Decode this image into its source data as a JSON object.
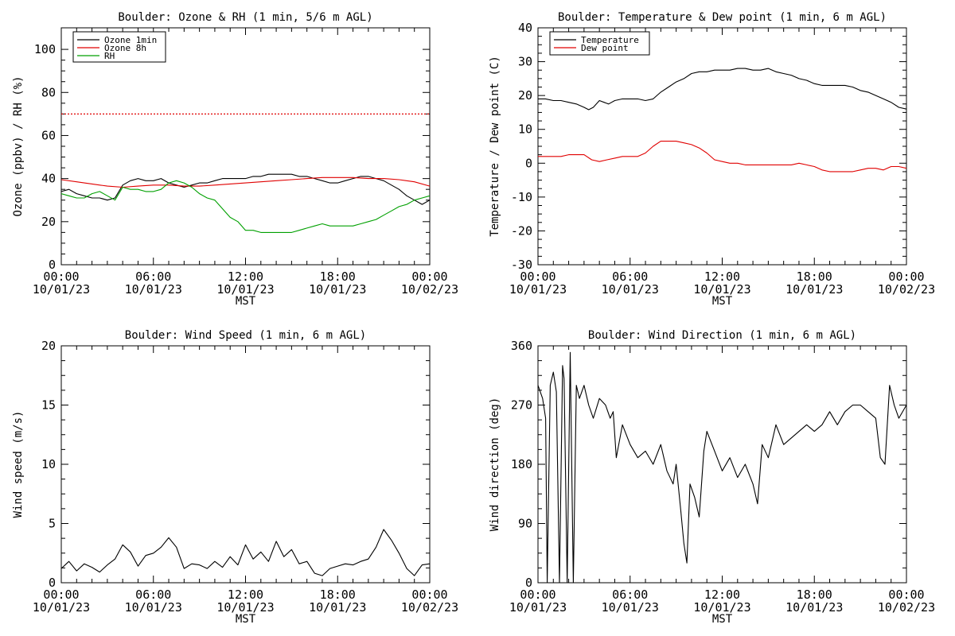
{
  "chart_data": [
    {
      "type": "line",
      "title": "Boulder: Ozone & RH (1 min, 5/6 m AGL)",
      "xlabel": "MST",
      "ylabel": "Ozone (ppbv) / RH (%)",
      "x_ticks": [
        {
          "hour": 0,
          "time": "00:00",
          "date": "10/01/23"
        },
        {
          "hour": 6,
          "time": "06:00",
          "date": "10/01/23"
        },
        {
          "hour": 12,
          "time": "12:00",
          "date": "10/01/23"
        },
        {
          "hour": 18,
          "time": "18:00",
          "date": "10/01/23"
        },
        {
          "hour": 24,
          "time": "00:00",
          "date": "10/02/23"
        }
      ],
      "xlim": [
        0,
        24
      ],
      "ylim": [
        0,
        110
      ],
      "yticks": [
        0,
        20,
        40,
        60,
        80,
        100
      ],
      "legend": "top-left",
      "reference_line": {
        "y": 70,
        "color": "#e00000",
        "style": "dotted"
      },
      "series": [
        {
          "name": "Ozone 1min",
          "color": "#000000",
          "x": [
            0,
            0.5,
            1,
            1.5,
            2,
            2.5,
            3,
            3.5,
            4,
            4.5,
            5,
            5.5,
            6,
            6.5,
            7,
            7.5,
            8,
            8.5,
            9,
            9.5,
            10,
            10.5,
            11,
            11.5,
            12,
            12.5,
            13,
            13.5,
            14,
            14.5,
            15,
            15.5,
            16,
            16.5,
            17,
            17.5,
            18,
            18.5,
            19,
            19.5,
            20,
            20.5,
            21,
            21.5,
            22,
            22.5,
            23,
            23.5,
            24
          ],
          "y": [
            34,
            35,
            33,
            32,
            31,
            31,
            30,
            31,
            37,
            39,
            40,
            39,
            39,
            40,
            38,
            37,
            36,
            37,
            38,
            38,
            39,
            40,
            40,
            40,
            40,
            41,
            41,
            42,
            42,
            42,
            42,
            41,
            41,
            40,
            39,
            38,
            38,
            39,
            40,
            41,
            41,
            40,
            39,
            37,
            35,
            32,
            30,
            28,
            30
          ]
        },
        {
          "name": "Ozone 8h",
          "color": "#e00000",
          "x": [
            0,
            1,
            2,
            3,
            4,
            5,
            6,
            7,
            8,
            9,
            10,
            11,
            12,
            13,
            14,
            15,
            16,
            17,
            18,
            19,
            20,
            21,
            22,
            23,
            24
          ],
          "y": [
            39.5,
            38.5,
            37.5,
            36.5,
            36,
            36.5,
            37,
            37,
            36.5,
            36.5,
            37,
            37.5,
            38,
            38.5,
            39,
            39.5,
            40,
            40.5,
            40.5,
            40.5,
            40,
            40,
            39.5,
            38.5,
            36.5
          ]
        },
        {
          "name": "RH",
          "color": "#00a000",
          "x": [
            0,
            0.5,
            1,
            1.5,
            2,
            2.5,
            3,
            3.5,
            4,
            4.5,
            5,
            5.5,
            6,
            6.5,
            7,
            7.5,
            8,
            8.5,
            9,
            9.5,
            10,
            10.5,
            11,
            11.5,
            12,
            12.5,
            13,
            13.5,
            14,
            14.5,
            15,
            15.5,
            16,
            16.5,
            17,
            17.5,
            18,
            18.5,
            19,
            19.5,
            20,
            20.5,
            21,
            21.5,
            22,
            22.5,
            23,
            23.5,
            24
          ],
          "y": [
            33,
            32,
            31,
            31,
            33,
            34,
            32,
            30,
            36,
            35,
            35,
            34,
            34,
            35,
            38,
            39,
            38,
            36,
            33,
            31,
            30,
            26,
            22,
            20,
            16,
            16,
            15,
            15,
            15,
            15,
            15,
            16,
            17,
            18,
            19,
            18,
            18,
            18,
            18,
            19,
            20,
            21,
            23,
            25,
            27,
            28,
            30,
            31,
            32
          ]
        }
      ]
    },
    {
      "type": "line",
      "title": "Boulder: Temperature & Dew point (1 min, 6 m AGL)",
      "xlabel": "MST",
      "ylabel": "Temperature / Dew point (C)",
      "x_ticks": [
        {
          "hour": 0,
          "time": "00:00",
          "date": "10/01/23"
        },
        {
          "hour": 6,
          "time": "06:00",
          "date": "10/01/23"
        },
        {
          "hour": 12,
          "time": "12:00",
          "date": "10/01/23"
        },
        {
          "hour": 18,
          "time": "18:00",
          "date": "10/01/23"
        },
        {
          "hour": 24,
          "time": "00:00",
          "date": "10/02/23"
        }
      ],
      "xlim": [
        0,
        24
      ],
      "ylim": [
        -30,
        40
      ],
      "yticks": [
        -30,
        -20,
        -10,
        0,
        10,
        20,
        30,
        40
      ],
      "legend": "top-left",
      "series": [
        {
          "name": "Temperature",
          "color": "#000000",
          "x": [
            0,
            0.5,
            1,
            1.5,
            2,
            2.5,
            3,
            3.3,
            3.6,
            4,
            4.3,
            4.6,
            5,
            5.5,
            6,
            6.5,
            7,
            7.5,
            8,
            8.5,
            9,
            9.5,
            10,
            10.5,
            11,
            11.5,
            12,
            12.5,
            13,
            13.5,
            14,
            14.5,
            15,
            15.5,
            16,
            16.5,
            17,
            17.5,
            18,
            18.5,
            19,
            19.5,
            20,
            20.5,
            21,
            21.5,
            22,
            22.5,
            23,
            23.5,
            24
          ],
          "y": [
            19,
            19,
            18.5,
            18.5,
            18,
            17.5,
            16.5,
            15.8,
            16.5,
            18.5,
            18,
            17.5,
            18.5,
            19,
            19,
            19,
            18.5,
            19,
            21,
            22.5,
            24,
            25,
            26.5,
            27,
            27,
            27.5,
            27.5,
            27.5,
            28,
            28,
            27.5,
            27.5,
            28,
            27,
            26.5,
            26,
            25,
            24.5,
            23.5,
            23,
            23,
            23,
            23,
            22.5,
            21.5,
            21,
            20,
            19,
            18,
            16.5,
            16
          ]
        },
        {
          "name": "Dew point",
          "color": "#e00000",
          "x": [
            0,
            0.5,
            1,
            1.5,
            2,
            2.5,
            3,
            3.5,
            4,
            4.5,
            5,
            5.5,
            6,
            6.5,
            7,
            7.5,
            8,
            8.5,
            9,
            9.5,
            10,
            10.5,
            11,
            11.5,
            12,
            12.5,
            13,
            13.5,
            14,
            14.5,
            15,
            15.5,
            16,
            16.5,
            17,
            17.5,
            18,
            18.5,
            19,
            19.5,
            20,
            20.5,
            21,
            21.5,
            22,
            22.5,
            23,
            23.5,
            24
          ],
          "y": [
            2,
            2,
            2,
            2,
            2.5,
            2.5,
            2.5,
            1,
            0.5,
            1,
            1.5,
            2,
            2,
            2,
            3,
            5,
            6.5,
            6.5,
            6.5,
            6,
            5.5,
            4.5,
            3,
            1,
            0.5,
            0,
            0,
            -0.5,
            -0.5,
            -0.5,
            -0.5,
            -0.5,
            -0.5,
            -0.5,
            0,
            -0.5,
            -1,
            -2,
            -2.5,
            -2.5,
            -2.5,
            -2.5,
            -2,
            -1.5,
            -1.5,
            -2,
            -1,
            -1,
            -1.5
          ]
        }
      ]
    },
    {
      "type": "line",
      "title": "Boulder: Wind Speed (1 min, 6 m AGL)",
      "xlabel": "MST",
      "ylabel": "Wind speed (m/s)",
      "x_ticks": [
        {
          "hour": 0,
          "time": "00:00",
          "date": "10/01/23"
        },
        {
          "hour": 6,
          "time": "06:00",
          "date": "10/01/23"
        },
        {
          "hour": 12,
          "time": "12:00",
          "date": "10/01/23"
        },
        {
          "hour": 18,
          "time": "18:00",
          "date": "10/01/23"
        },
        {
          "hour": 24,
          "time": "00:00",
          "date": "10/02/23"
        }
      ],
      "xlim": [
        0,
        24
      ],
      "ylim": [
        0,
        20
      ],
      "yticks": [
        0,
        5,
        10,
        15,
        20
      ],
      "series": [
        {
          "name": "",
          "color": "#000000",
          "x": [
            0,
            0.5,
            1,
            1.5,
            2,
            2.5,
            3,
            3.5,
            4,
            4.5,
            5,
            5.5,
            6,
            6.5,
            7,
            7.5,
            8,
            8.5,
            9,
            9.5,
            10,
            10.5,
            11,
            11.5,
            12,
            12.5,
            13,
            13.5,
            14,
            14.5,
            15,
            15.5,
            16,
            16.5,
            17,
            17.5,
            18,
            18.5,
            19,
            19.5,
            20,
            20.5,
            21,
            21.5,
            22,
            22.5,
            23,
            23.5,
            24
          ],
          "y": [
            1.2,
            1.8,
            1.0,
            1.6,
            1.3,
            0.9,
            1.5,
            2.0,
            3.2,
            2.6,
            1.4,
            2.3,
            2.5,
            3.0,
            3.8,
            3.0,
            1.2,
            1.6,
            1.5,
            1.2,
            1.8,
            1.3,
            2.2,
            1.5,
            3.2,
            2.0,
            2.6,
            1.8,
            3.5,
            2.2,
            2.8,
            1.6,
            1.8,
            0.8,
            0.6,
            1.2,
            1.4,
            1.6,
            1.5,
            1.8,
            2.0,
            3.0,
            4.5,
            3.6,
            2.5,
            1.2,
            0.6,
            1.5,
            1.6
          ]
        }
      ]
    },
    {
      "type": "line",
      "title": "Boulder: Wind Direction (1 min, 6 m AGL)",
      "xlabel": "MST",
      "ylabel": "Wind direction (deg)",
      "x_ticks": [
        {
          "hour": 0,
          "time": "00:00",
          "date": "10/01/23"
        },
        {
          "hour": 6,
          "time": "06:00",
          "date": "10/01/23"
        },
        {
          "hour": 12,
          "time": "12:00",
          "date": "10/01/23"
        },
        {
          "hour": 18,
          "time": "18:00",
          "date": "10/01/23"
        },
        {
          "hour": 24,
          "time": "00:00",
          "date": "10/02/23"
        }
      ],
      "xlim": [
        0,
        24
      ],
      "ylim": [
        0,
        360
      ],
      "yticks": [
        0,
        90,
        180,
        270,
        360
      ],
      "series": [
        {
          "name": "",
          "color": "#000000",
          "x": [
            0,
            0.3,
            0.5,
            0.6,
            0.8,
            1.0,
            1.2,
            1.4,
            1.6,
            1.7,
            1.9,
            2.1,
            2.3,
            2.5,
            2.7,
            3.0,
            3.3,
            3.6,
            4.0,
            4.4,
            4.7,
            4.9,
            5.1,
            5.5,
            6.0,
            6.5,
            7.0,
            7.5,
            8.0,
            8.4,
            8.8,
            9.0,
            9.3,
            9.5,
            9.7,
            9.9,
            10.2,
            10.5,
            10.8,
            11.0,
            11.5,
            12.0,
            12.5,
            13.0,
            13.5,
            14.0,
            14.3,
            14.6,
            15.0,
            15.5,
            16.0,
            16.5,
            17.0,
            17.5,
            18.0,
            18.5,
            19.0,
            19.5,
            20.0,
            20.5,
            21.0,
            21.5,
            22.0,
            22.3,
            22.6,
            22.9,
            23.2,
            23.5,
            24.0
          ],
          "y": [
            300,
            280,
            250,
            0,
            300,
            320,
            290,
            0,
            330,
            310,
            0,
            350,
            0,
            300,
            280,
            300,
            270,
            250,
            280,
            270,
            250,
            260,
            190,
            240,
            210,
            190,
            200,
            180,
            210,
            170,
            150,
            180,
            110,
            60,
            30,
            150,
            130,
            100,
            200,
            230,
            200,
            170,
            190,
            160,
            180,
            150,
            120,
            210,
            190,
            240,
            210,
            220,
            230,
            240,
            230,
            240,
            260,
            240,
            260,
            270,
            270,
            260,
            250,
            190,
            180,
            300,
            270,
            250,
            270
          ]
        }
      ]
    }
  ]
}
